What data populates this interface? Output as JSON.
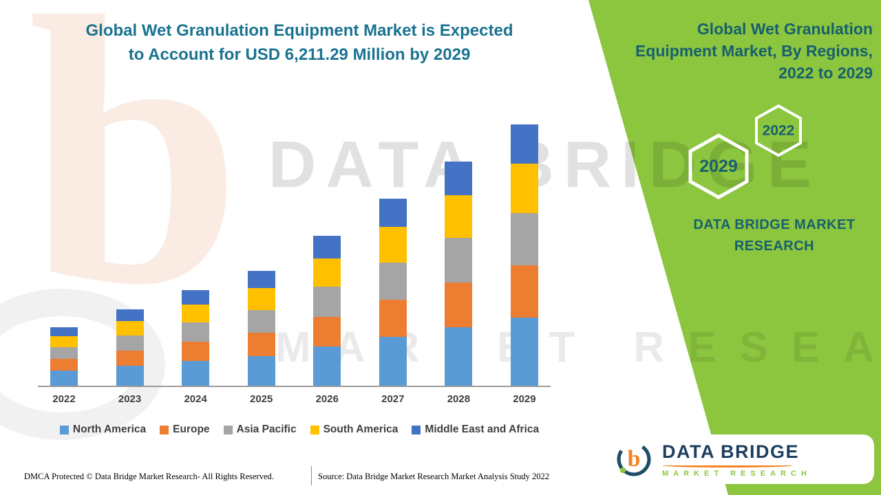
{
  "title": {
    "text": "Global Wet Granulation Equipment Market is Expected to Account for USD 6,211.29 Million by 2029"
  },
  "right_panel": {
    "heading": "Global Wet Granulation Equipment Market, By Regions, 2022 to 2029",
    "hex_top_year": "2022",
    "hex_bottom_year": "2029",
    "brand": "DATA BRIDGE MARKET RESEARCH",
    "panel_color": "#8cc63f",
    "heading_color": "#17606d"
  },
  "watermark": {
    "line1": "DATA BRIDGE",
    "line2": "MARKET RESEARCH",
    "logo_letter": "b"
  },
  "logo": {
    "title": "DATA BRIDGE",
    "subtitle": "MARKET RESEARCH"
  },
  "footer": {
    "dmca": "DMCA Protected © Data Bridge Market Research- All Rights Reserved.",
    "source": "Source: Data Bridge Market Research Market Analysis Study 2022"
  },
  "chart_data": {
    "type": "bar",
    "stacked": true,
    "title": "Global Wet Granulation Equipment Market is Expected to Account for USD 6,211.29 Million by 2029",
    "value_unit": "USD Million",
    "categories": [
      "2022",
      "2023",
      "2024",
      "2025",
      "2026",
      "2027",
      "2028",
      "2029"
    ],
    "series": [
      {
        "name": "North America",
        "color": "#5b9bd5",
        "values": [
          361,
          472,
          591,
          710,
          927,
          1156,
          1386,
          1615
        ]
      },
      {
        "name": "Europe",
        "color": "#ed7d31",
        "values": [
          278,
          363,
          454,
          546,
          713,
          889,
          1066,
          1242
        ]
      },
      {
        "name": "Asia Pacific",
        "color": "#a5a5a5",
        "values": [
          278,
          363,
          454,
          546,
          713,
          889,
          1066,
          1242
        ]
      },
      {
        "name": "South America",
        "color": "#ffc000",
        "values": [
          264,
          345,
          432,
          519,
          677,
          845,
          1013,
          1180
        ]
      },
      {
        "name": "Middle East and Africa",
        "color": "#4472c4",
        "values": [
          209,
          272,
          341,
          409,
          534,
          668,
          799,
          932.29
        ]
      }
    ],
    "totals": [
      1390,
      1815,
      2272,
      2730,
      3564,
      4447,
      5330,
      6211.29
    ],
    "ylim": [
      0,
      6500
    ],
    "grid": false,
    "legend_position": "bottom",
    "xlabel": "",
    "ylabel": ""
  }
}
